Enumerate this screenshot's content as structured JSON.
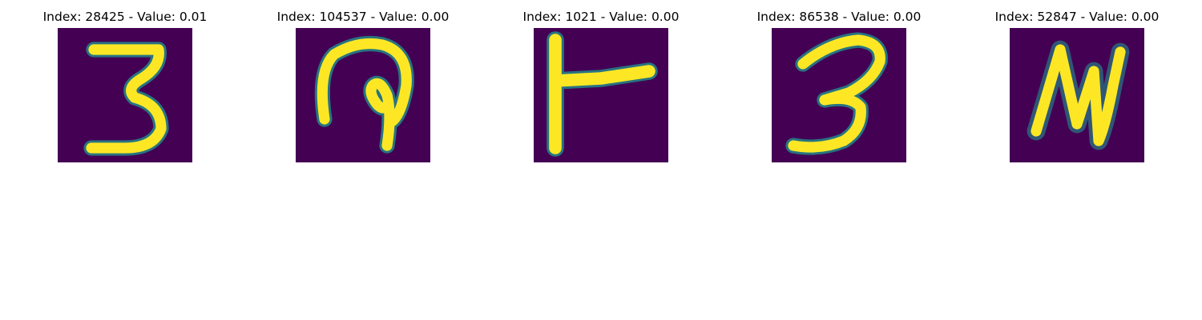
{
  "colors": {
    "background": "#440154",
    "foreground": "#fde725",
    "edge_teal": "#21918c"
  },
  "panels": [
    {
      "title": "Index: 28425 - Value: 0.01",
      "glyph": "3"
    },
    {
      "title": "Index: 104537 - Value: 0.00",
      "glyph": "curl"
    },
    {
      "title": "Index: 1021 - Value: 0.00",
      "glyph": "F"
    },
    {
      "title": "Index: 86538 - Value: 0.00",
      "glyph": "3"
    },
    {
      "title": "Index: 52847 - Value: 0.00",
      "glyph": "N"
    }
  ]
}
